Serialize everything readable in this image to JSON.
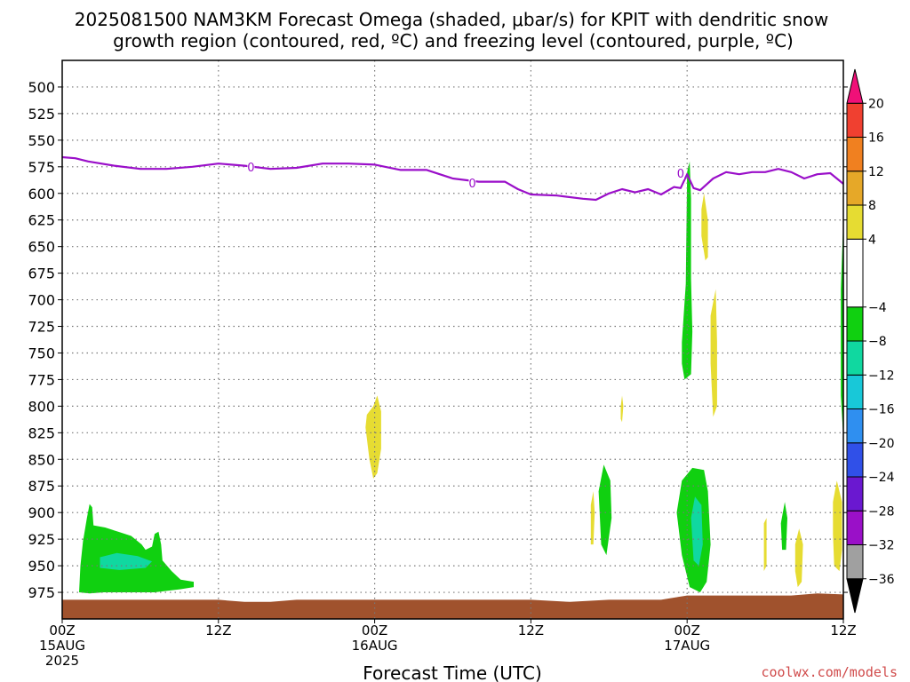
{
  "title": {
    "line1": "2025081500 NAM3KM Forecast Omega (shaded, μbar/s) for KPIT with dendritic snow",
    "line2": "growth region (contoured, red, ºC) and freezing level (contoured, purple, ºC)"
  },
  "xlabel": "Forecast Time (UTC)",
  "credit": "coolwx.com/models",
  "colors": {
    "freezing_line": "#9a0fc9",
    "terrain": "#a0522d",
    "grid": "#777777"
  },
  "chart_data": {
    "type": "time-height",
    "x_ticks": [
      {
        "hour": 0,
        "line1": "00Z",
        "line2": "15AUG",
        "line3": "2025"
      },
      {
        "hour": 12,
        "line1": "12Z",
        "line2": "",
        "line3": ""
      },
      {
        "hour": 24,
        "line1": "00Z",
        "line2": "16AUG",
        "line3": ""
      },
      {
        "hour": 36,
        "line1": "12Z",
        "line2": "",
        "line3": ""
      },
      {
        "hour": 48,
        "line1": "00Z",
        "line2": "17AUG",
        "line3": ""
      },
      {
        "hour": 60,
        "line1": "12Z",
        "line2": "",
        "line3": ""
      }
    ],
    "xlim": [
      0,
      60
    ],
    "y_ticks": [
      500,
      525,
      550,
      575,
      600,
      625,
      650,
      675,
      700,
      725,
      750,
      775,
      800,
      825,
      850,
      875,
      900,
      925,
      950,
      975
    ],
    "ylim": [
      475,
      1000
    ],
    "freezing_level": {
      "label": "0",
      "label_points": [
        [
          14.5,
          575
        ],
        [
          31.5,
          590
        ],
        [
          47.5,
          581
        ]
      ],
      "points": [
        [
          0,
          566
        ],
        [
          1,
          567
        ],
        [
          2,
          570
        ],
        [
          4,
          574
        ],
        [
          6,
          577
        ],
        [
          8,
          577
        ],
        [
          10,
          575
        ],
        [
          12,
          572
        ],
        [
          14,
          574
        ],
        [
          16,
          577
        ],
        [
          18,
          576
        ],
        [
          20,
          572
        ],
        [
          22,
          572
        ],
        [
          24,
          573
        ],
        [
          26,
          578
        ],
        [
          28,
          578
        ],
        [
          30,
          586
        ],
        [
          32,
          589
        ],
        [
          34,
          589
        ],
        [
          35,
          596
        ],
        [
          36,
          601
        ],
        [
          38,
          602
        ],
        [
          40,
          605
        ],
        [
          41,
          606
        ],
        [
          42,
          600
        ],
        [
          43,
          596
        ],
        [
          44,
          599
        ],
        [
          45,
          596
        ],
        [
          46,
          601
        ],
        [
          47,
          594
        ],
        [
          47.5,
          595
        ],
        [
          48,
          582
        ],
        [
          48.5,
          595
        ],
        [
          49,
          597
        ],
        [
          50,
          586
        ],
        [
          51,
          580
        ],
        [
          52,
          582
        ],
        [
          53,
          580
        ],
        [
          54,
          580
        ],
        [
          55,
          577
        ],
        [
          56,
          580
        ],
        [
          57,
          586
        ],
        [
          58,
          582
        ],
        [
          59,
          581
        ],
        [
          60,
          591
        ]
      ]
    },
    "omega_regions": [
      {
        "value": -6,
        "points": [
          [
            1.3,
            975
          ],
          [
            1.4,
            950
          ],
          [
            1.6,
            927
          ],
          [
            1.9,
            905
          ],
          [
            2.1,
            892
          ],
          [
            2.3,
            895
          ],
          [
            2.4,
            912
          ],
          [
            3.3,
            914
          ],
          [
            4.3,
            918
          ],
          [
            5.3,
            922
          ],
          [
            6.1,
            930
          ],
          [
            6.4,
            935
          ],
          [
            6.9,
            932
          ],
          [
            7.1,
            920
          ],
          [
            7.4,
            918
          ],
          [
            7.6,
            930
          ],
          [
            7.7,
            945
          ],
          [
            8.4,
            955
          ],
          [
            9.1,
            963
          ],
          [
            10.1,
            965
          ],
          [
            10.1,
            970
          ],
          [
            9.1,
            972
          ],
          [
            7.1,
            975
          ],
          [
            5.1,
            975
          ],
          [
            3.2,
            975
          ],
          [
            2.1,
            976
          ]
        ]
      },
      {
        "value": -10,
        "points": [
          [
            2.9,
            942
          ],
          [
            4.2,
            938
          ],
          [
            5.8,
            941
          ],
          [
            6.9,
            946
          ],
          [
            6.4,
            952
          ],
          [
            4.4,
            954
          ],
          [
            2.9,
            952
          ]
        ]
      },
      {
        "value": 6,
        "points": [
          [
            23.9,
            800
          ],
          [
            24.2,
            790
          ],
          [
            24.5,
            805
          ],
          [
            24.5,
            840
          ],
          [
            24.2,
            863
          ],
          [
            23.9,
            868
          ],
          [
            23.6,
            850
          ],
          [
            23.3,
            820
          ],
          [
            23.4,
            808
          ]
        ]
      },
      {
        "value": 6,
        "points": [
          [
            42.9,
            800
          ],
          [
            43.0,
            790
          ],
          [
            43.1,
            800
          ],
          [
            43.0,
            815
          ],
          [
            42.9,
            812
          ]
        ]
      },
      {
        "value": 6,
        "points": [
          [
            40.6,
            893
          ],
          [
            40.8,
            880
          ],
          [
            40.9,
            900
          ],
          [
            40.8,
            930
          ],
          [
            40.6,
            930
          ]
        ]
      },
      {
        "value": -6,
        "points": [
          [
            41.2,
            880
          ],
          [
            41.6,
            855
          ],
          [
            42.1,
            870
          ],
          [
            42.2,
            905
          ],
          [
            41.8,
            940
          ],
          [
            41.4,
            930
          ]
        ]
      },
      {
        "value": -6,
        "points": [
          [
            47.6,
            740
          ],
          [
            47.9,
            685
          ],
          [
            48.0,
            580
          ],
          [
            48.2,
            570
          ],
          [
            48.3,
            605
          ],
          [
            48.3,
            680
          ],
          [
            48.4,
            730
          ],
          [
            48.3,
            770
          ],
          [
            47.8,
            775
          ],
          [
            47.6,
            760
          ]
        ]
      },
      {
        "value": 6,
        "points": [
          [
            49.1,
            615
          ],
          [
            49.3,
            600
          ],
          [
            49.6,
            625
          ],
          [
            49.6,
            660
          ],
          [
            49.4,
            663
          ],
          [
            49.1,
            640
          ]
        ]
      },
      {
        "value": 6,
        "points": [
          [
            49.8,
            715
          ],
          [
            50.2,
            690
          ],
          [
            50.3,
            740
          ],
          [
            50.3,
            800
          ],
          [
            50.0,
            810
          ],
          [
            49.8,
            760
          ]
        ]
      },
      {
        "value": -6,
        "points": [
          [
            47.2,
            900
          ],
          [
            47.6,
            870
          ],
          [
            48.4,
            858
          ],
          [
            49.3,
            860
          ],
          [
            49.6,
            880
          ],
          [
            49.8,
            930
          ],
          [
            49.5,
            965
          ],
          [
            49.0,
            975
          ],
          [
            48.2,
            970
          ],
          [
            47.6,
            940
          ]
        ]
      },
      {
        "value": -10,
        "points": [
          [
            48.3,
            905
          ],
          [
            48.6,
            885
          ],
          [
            49.1,
            893
          ],
          [
            49.2,
            930
          ],
          [
            48.9,
            950
          ],
          [
            48.5,
            945
          ]
        ]
      },
      {
        "value": 6,
        "points": [
          [
            53.9,
            910
          ],
          [
            54.1,
            905
          ],
          [
            54.1,
            950
          ],
          [
            53.9,
            955
          ]
        ]
      },
      {
        "value": -6,
        "points": [
          [
            55.2,
            910
          ],
          [
            55.5,
            890
          ],
          [
            55.7,
            905
          ],
          [
            55.6,
            935
          ],
          [
            55.3,
            935
          ]
        ]
      },
      {
        "value": 6,
        "points": [
          [
            56.3,
            930
          ],
          [
            56.6,
            915
          ],
          [
            56.9,
            930
          ],
          [
            56.8,
            965
          ],
          [
            56.5,
            970
          ],
          [
            56.3,
            955
          ]
        ]
      },
      {
        "value": 6,
        "points": [
          [
            59.2,
            890
          ],
          [
            59.5,
            870
          ],
          [
            59.9,
            890
          ],
          [
            59.9,
            935
          ],
          [
            59.7,
            955
          ],
          [
            59.3,
            950
          ],
          [
            59.2,
            920
          ]
        ]
      },
      {
        "value": -6,
        "points": [
          [
            59.8,
            690
          ],
          [
            60.0,
            625
          ],
          [
            60.0,
            830
          ],
          [
            59.8,
            790
          ]
        ]
      }
    ],
    "terrain_pressure": [
      [
        0,
        982
      ],
      [
        8,
        982
      ],
      [
        12,
        982
      ],
      [
        14,
        984
      ],
      [
        16,
        984
      ],
      [
        18,
        982
      ],
      [
        24,
        982
      ],
      [
        36,
        982
      ],
      [
        39,
        984
      ],
      [
        42,
        982
      ],
      [
        46,
        982
      ],
      [
        48,
        978
      ],
      [
        52,
        978
      ],
      [
        56,
        978
      ],
      [
        58,
        976
      ],
      [
        60,
        977
      ]
    ],
    "colorbar": {
      "min": -40,
      "max": 24,
      "tick_labels": [
        "20",
        "16",
        "12",
        "8",
        "4",
        "−4",
        "−8",
        "−12",
        "−16",
        "−20",
        "−24",
        "−28",
        "−32",
        "−36"
      ],
      "tick_values": [
        20,
        16,
        12,
        8,
        4,
        -4,
        -8,
        -12,
        -16,
        -20,
        -24,
        -28,
        -32,
        -36
      ],
      "bins": [
        {
          "lo": -40,
          "hi": -36,
          "color": "#000000"
        },
        {
          "lo": -36,
          "hi": -32,
          "color": "#a0a0a0"
        },
        {
          "lo": -32,
          "hi": -28,
          "color": "#9a10c8"
        },
        {
          "lo": -28,
          "hi": -24,
          "color": "#6a18d0"
        },
        {
          "lo": -24,
          "hi": -20,
          "color": "#3050e8"
        },
        {
          "lo": -20,
          "hi": -16,
          "color": "#2f8ff0"
        },
        {
          "lo": -16,
          "hi": -12,
          "color": "#18c8d8"
        },
        {
          "lo": -12,
          "hi": -8,
          "color": "#10d8a0"
        },
        {
          "lo": -8,
          "hi": -4,
          "color": "#10d010"
        },
        {
          "lo": -4,
          "hi": 4,
          "color": "#ffffff"
        },
        {
          "lo": 4,
          "hi": 8,
          "color": "#e6dc32"
        },
        {
          "lo": 8,
          "hi": 12,
          "color": "#e6a828"
        },
        {
          "lo": 12,
          "hi": 16,
          "color": "#f08020"
        },
        {
          "lo": 16,
          "hi": 20,
          "color": "#f04030"
        },
        {
          "lo": 20,
          "hi": 24,
          "color": "#f01078"
        }
      ]
    }
  }
}
